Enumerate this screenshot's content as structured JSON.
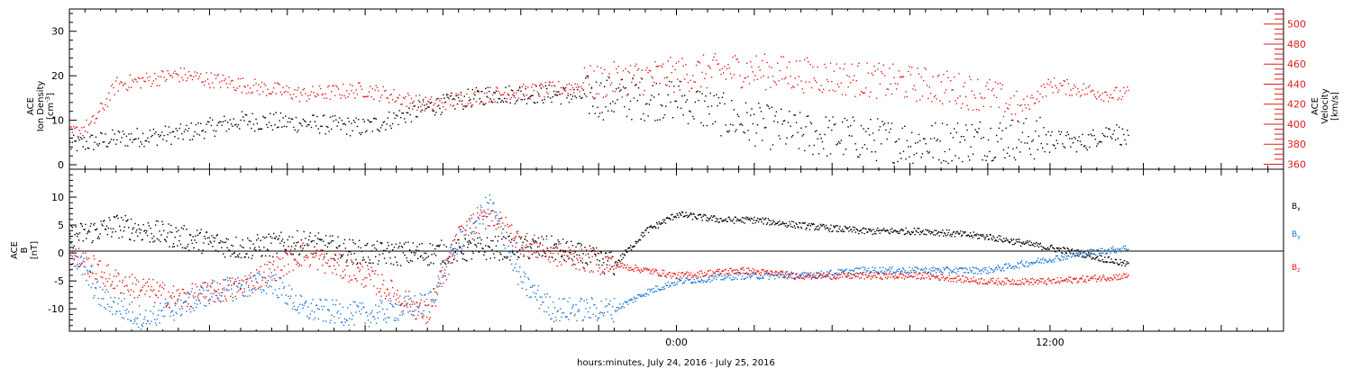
{
  "chart_data": [
    {
      "type": "scatter",
      "panel": "top",
      "ylabel_left": [
        "ACE",
        "Ion Density",
        "[cm^-3]"
      ],
      "ylabel_right": [
        "ACE",
        "Velocity",
        "[km/s]"
      ],
      "xlim_hours": [
        -19.5,
        19.5
      ],
      "ylim_left": [
        -1,
        35
      ],
      "ylim_right": [
        355,
        515
      ],
      "yticks_left": [
        0,
        10,
        20,
        30
      ],
      "yticks_right": [
        360,
        380,
        400,
        420,
        440,
        460,
        480,
        500
      ],
      "colors": {
        "density": "#000000",
        "velocity": "#e41a1c"
      },
      "series": [
        {
          "name": "Ion Density",
          "axis": "left",
          "color": "#000000",
          "profile": [
            [
              -19.5,
              4.5
            ],
            [
              -18,
              6
            ],
            [
              -16,
              7
            ],
            [
              -14,
              10
            ],
            [
              -12,
              9.5
            ],
            [
              -10,
              8.5
            ],
            [
              -8,
              13
            ],
            [
              -6,
              16
            ],
            [
              -4,
              16
            ],
            [
              -2,
              15
            ],
            [
              0,
              15
            ],
            [
              2,
              10
            ],
            [
              4,
              7
            ],
            [
              6,
              6
            ],
            [
              8,
              5
            ],
            [
              10,
              6
            ],
            [
              11,
              6
            ],
            [
              12,
              6
            ],
            [
              13,
              5
            ],
            [
              14,
              8
            ],
            [
              14.5,
              5.5
            ]
          ]
        },
        {
          "name": "Velocity",
          "axis": "right",
          "color": "#e41a1c",
          "profile": [
            [
              -19.5,
              390
            ],
            [
              -18.8,
              400
            ],
            [
              -18,
              440
            ],
            [
              -16,
              450
            ],
            [
              -14,
              440
            ],
            [
              -12,
              430
            ],
            [
              -10,
              435
            ],
            [
              -8,
              420
            ],
            [
              -6,
              430
            ],
            [
              -4,
              435
            ],
            [
              -2,
              445
            ],
            [
              0,
              450
            ],
            [
              2,
              455
            ],
            [
              4,
              450
            ],
            [
              6,
              445
            ],
            [
              8,
              440
            ],
            [
              10,
              430
            ],
            [
              11,
              415
            ],
            [
              12,
              440
            ],
            [
              13,
              435
            ],
            [
              14,
              430
            ],
            [
              14.5,
              430
            ]
          ]
        }
      ]
    },
    {
      "type": "scatter",
      "panel": "bottom",
      "ylabel_left": [
        "ACE",
        "B",
        "[nT]"
      ],
      "xlim_hours": [
        -19.5,
        19.5
      ],
      "ylim": [
        -14,
        15
      ],
      "yticks": [
        -10,
        -5,
        0,
        5,
        10
      ],
      "xticks": [
        {
          "hours": -15,
          "label": ""
        },
        {
          "hours": -12.5,
          "label": ""
        },
        {
          "hours": -10,
          "label": ""
        },
        {
          "hours": -7.5,
          "label": ""
        },
        {
          "hours": -5,
          "label": ""
        },
        {
          "hours": -2.5,
          "label": ""
        },
        {
          "hours": 0,
          "label": "0:00"
        },
        {
          "hours": 2.5,
          "label": ""
        },
        {
          "hours": 5,
          "label": ""
        },
        {
          "hours": 7.5,
          "label": ""
        },
        {
          "hours": 10,
          "label": ""
        },
        {
          "hours": 12,
          "label": "12:00"
        },
        {
          "hours": 15,
          "label": ""
        },
        {
          "hours": 17.5,
          "label": ""
        }
      ],
      "xlabel": "hours:minutes, July 24, 2016 - July 25, 2016",
      "series": [
        {
          "name": "Bx",
          "color": "#000000",
          "profile": [
            [
              -19.5,
              3
            ],
            [
              -18,
              5
            ],
            [
              -16,
              3
            ],
            [
              -14,
              1
            ],
            [
              -12,
              2
            ],
            [
              -10,
              0
            ],
            [
              -8,
              0
            ],
            [
              -6,
              1
            ],
            [
              -4,
              1
            ],
            [
              -2,
              -2
            ],
            [
              -1,
              4
            ],
            [
              0,
              7
            ],
            [
              1.5,
              6
            ],
            [
              2.5,
              6
            ],
            [
              4,
              5
            ],
            [
              6,
              4
            ],
            [
              8,
              4
            ],
            [
              10,
              3
            ],
            [
              11,
              2
            ],
            [
              12,
              1
            ],
            [
              13,
              0
            ],
            [
              14.5,
              -2
            ]
          ]
        },
        {
          "name": "By",
          "color": "#1f77d4",
          "profile": [
            [
              -19.5,
              1
            ],
            [
              -18.5,
              -8
            ],
            [
              -17,
              -12
            ],
            [
              -15,
              -7
            ],
            [
              -13,
              -5
            ],
            [
              -12,
              -10
            ],
            [
              -10,
              -11
            ],
            [
              -8,
              -9
            ],
            [
              -7,
              2
            ],
            [
              -6,
              9
            ],
            [
              -5,
              -5
            ],
            [
              -4,
              -10
            ],
            [
              -2,
              -10
            ],
            [
              -1,
              -7
            ],
            [
              0,
              -5
            ],
            [
              2,
              -4
            ],
            [
              4,
              -4
            ],
            [
              6,
              -3
            ],
            [
              8,
              -3
            ],
            [
              10,
              -3
            ],
            [
              11,
              -2
            ],
            [
              12,
              -1
            ],
            [
              13,
              0
            ],
            [
              14.5,
              1
            ]
          ]
        },
        {
          "name": "Bz",
          "color": "#e41a1c",
          "profile": [
            [
              -19.5,
              0
            ],
            [
              -18,
              -5
            ],
            [
              -16,
              -8
            ],
            [
              -14,
              -6
            ],
            [
              -12,
              0
            ],
            [
              -10,
              -4
            ],
            [
              -8,
              -11
            ],
            [
              -7,
              3
            ],
            [
              -6,
              7
            ],
            [
              -5,
              2
            ],
            [
              -4,
              0
            ],
            [
              -2,
              -2
            ],
            [
              0,
              -4
            ],
            [
              2,
              -3
            ],
            [
              4,
              -4
            ],
            [
              6,
              -4
            ],
            [
              8,
              -4
            ],
            [
              10,
              -5
            ],
            [
              12,
              -5
            ],
            [
              14.5,
              -4
            ]
          ]
        }
      ]
    }
  ],
  "legend": {
    "bx": {
      "main": "B",
      "sub": "x",
      "color": "#000000"
    },
    "by": {
      "main": "B",
      "sub": "y",
      "color": "#1f77d4"
    },
    "bz": {
      "main": "B",
      "sub": "z",
      "color": "#e41a1c"
    }
  },
  "labels": {
    "top_left": {
      "l1": "ACE",
      "l2": "Ion Density",
      "l3": "[cm",
      "l3_sup": "-3",
      "l3_end": "]"
    },
    "top_right": {
      "l1": "ACE",
      "l2": "Velocity",
      "l3": "[km/s]"
    },
    "bottom_left": {
      "l1": "ACE",
      "l2": "B",
      "l3": "[nT]"
    },
    "footer": "hours:minutes, July 24, 2016 - July 25, 2016"
  }
}
